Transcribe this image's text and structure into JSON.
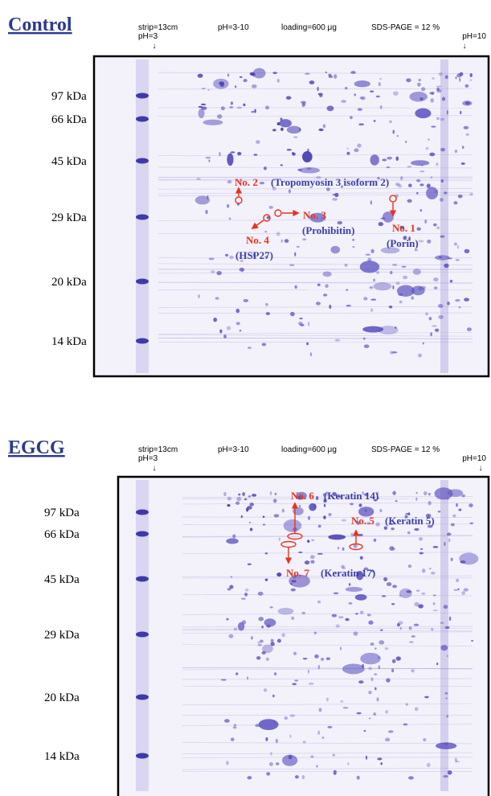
{
  "panels": [
    {
      "title": "Control",
      "header": {
        "strip": "strip=13cm",
        "ph_start": "pH=3",
        "ph_range": "pH=3-10",
        "loading": "loading=600 μg",
        "sds": "SDS-PAGE = 12 %",
        "ph_end": "pH=10"
      },
      "markers": [
        "97 kDa",
        "66 kDa",
        "45 kDa",
        "29 kDa",
        "20 kDa",
        "14 kDa"
      ],
      "annotations": [
        {
          "label": "No. 2",
          "protein": "(Tropomyosin 3 isoform 2)"
        },
        {
          "label": "No. 3",
          "protein": "(Prohibitin)"
        },
        {
          "label": "No. 4",
          "protein": "(HSP27)"
        },
        {
          "label": "No. 1",
          "protein": "(Porin)"
        }
      ]
    },
    {
      "title": "EGCG",
      "header": {
        "strip": "strip=13cm",
        "ph_start": "pH=3",
        "ph_range": "pH=3-10",
        "loading": "loading=600 μg",
        "sds": "SDS-PAGE = 12 %",
        "ph_end": "pH=10"
      },
      "markers": [
        "97 kDa",
        "66 kDa",
        "45 kDa",
        "29 kDa",
        "20 kDa",
        "14 kDa"
      ],
      "annotations": [
        {
          "label": "No. 6",
          "protein": "(Keratin 14)"
        },
        {
          "label": "No. 5",
          "protein": "(Keratin 5)"
        },
        {
          "label": "No. 7",
          "protein": "(Keratin 17)"
        }
      ]
    }
  ]
}
